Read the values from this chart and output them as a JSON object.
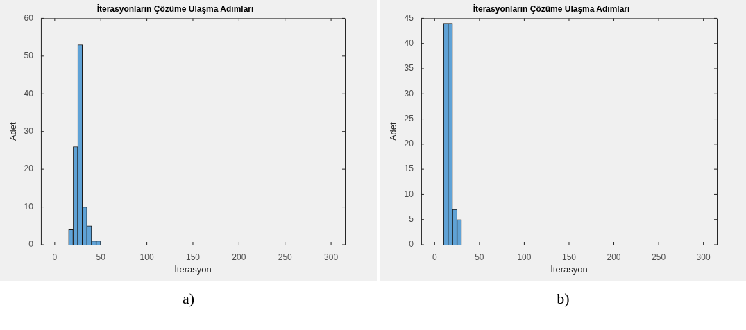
{
  "chart_data": [
    {
      "type": "histogram",
      "title": "İterasyonların Çözüme Ulaşma Adımları",
      "xlabel": "İterasyon",
      "ylabel": "Adet",
      "bins": [
        15,
        20,
        25,
        30,
        35,
        40,
        45,
        50
      ],
      "values": [
        4,
        26,
        53,
        10,
        5,
        1,
        1
      ],
      "color": "#5fa2d6",
      "xlim": [
        -15,
        315
      ],
      "xticks": [
        0,
        50,
        100,
        150,
        200,
        250,
        300
      ],
      "ylim": [
        0,
        60
      ],
      "yticks": [
        0,
        10,
        20,
        30,
        40,
        50,
        60
      ],
      "annotations": [
        "a)"
      ]
    },
    {
      "type": "histogram",
      "title": "İterasyonların Çözüme Ulaşma Adımları",
      "xlabel": "İterasyon",
      "ylabel": "Adet",
      "bins": [
        10,
        15,
        20,
        25,
        30
      ],
      "values": [
        44,
        44,
        7,
        5
      ],
      "color": "#5fa2d6",
      "xlim": [
        -15,
        315
      ],
      "xticks": [
        0,
        50,
        100,
        150,
        200,
        250,
        300
      ],
      "ylim": [
        0,
        45
      ],
      "yticks": [
        0,
        5,
        10,
        15,
        20,
        25,
        30,
        35,
        40,
        45
      ],
      "annotations": [
        "b)"
      ]
    }
  ]
}
